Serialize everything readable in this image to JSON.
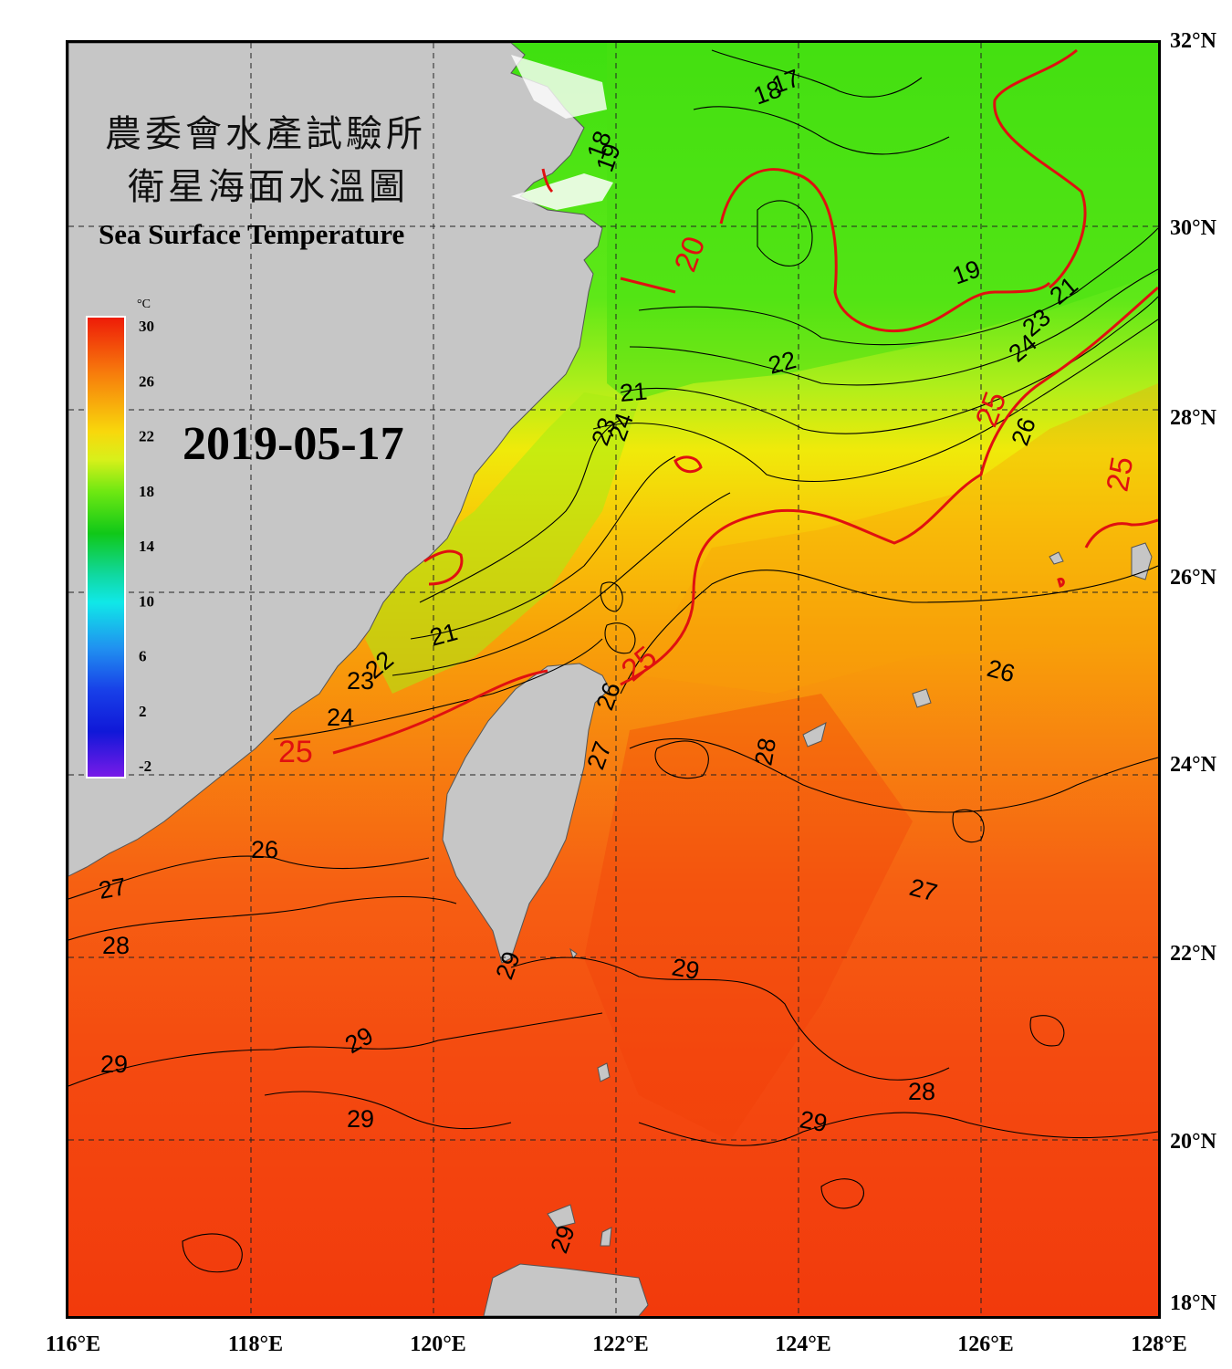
{
  "title": {
    "line1": "農委會水產試驗所",
    "line2": "衛星海面水溫圖",
    "line3": "Sea Surface Temperature"
  },
  "date": "2019-05-17",
  "colorbar": {
    "unit": "°C",
    "ticks": [
      "30",
      "26",
      "22",
      "18",
      "14",
      "10",
      "6",
      "2",
      "-2"
    ]
  },
  "axes": {
    "lon_labels": [
      "116°E",
      "118°E",
      "120°E",
      "122°E",
      "124°E",
      "126°E",
      "128°E"
    ],
    "lat_labels": [
      "32°N",
      "30°N",
      "28°N",
      "26°N",
      "24°N",
      "22°N",
      "20°N",
      "18°N"
    ]
  },
  "contour_labels": [
    {
      "text": "17",
      "color": "black"
    },
    {
      "text": "18",
      "color": "black"
    },
    {
      "text": "18",
      "color": "black"
    },
    {
      "text": "19",
      "color": "black"
    },
    {
      "text": "19",
      "color": "black"
    },
    {
      "text": "20",
      "color": "red"
    },
    {
      "text": "21",
      "color": "black"
    },
    {
      "text": "21",
      "color": "black"
    },
    {
      "text": "21",
      "color": "black"
    },
    {
      "text": "22",
      "color": "black"
    },
    {
      "text": "22",
      "color": "black"
    },
    {
      "text": "23",
      "color": "black"
    },
    {
      "text": "23",
      "color": "black"
    },
    {
      "text": "23",
      "color": "black"
    },
    {
      "text": "24",
      "color": "black"
    },
    {
      "text": "24",
      "color": "black"
    },
    {
      "text": "24",
      "color": "black"
    },
    {
      "text": "25",
      "color": "red"
    },
    {
      "text": "25",
      "color": "red"
    },
    {
      "text": "25",
      "color": "red"
    },
    {
      "text": "25",
      "color": "red"
    },
    {
      "text": "26",
      "color": "black"
    },
    {
      "text": "26",
      "color": "black"
    },
    {
      "text": "26",
      "color": "black"
    },
    {
      "text": "26",
      "color": "black"
    },
    {
      "text": "27",
      "color": "black"
    },
    {
      "text": "27",
      "color": "black"
    },
    {
      "text": "27",
      "color": "black"
    },
    {
      "text": "28",
      "color": "black"
    },
    {
      "text": "28",
      "color": "black"
    },
    {
      "text": "28",
      "color": "black"
    },
    {
      "text": "29",
      "color": "black"
    },
    {
      "text": "29",
      "color": "black"
    },
    {
      "text": "29",
      "color": "black"
    },
    {
      "text": "29",
      "color": "black"
    },
    {
      "text": "29",
      "color": "black"
    },
    {
      "text": "29",
      "color": "black"
    },
    {
      "text": "29",
      "color": "black"
    }
  ]
}
